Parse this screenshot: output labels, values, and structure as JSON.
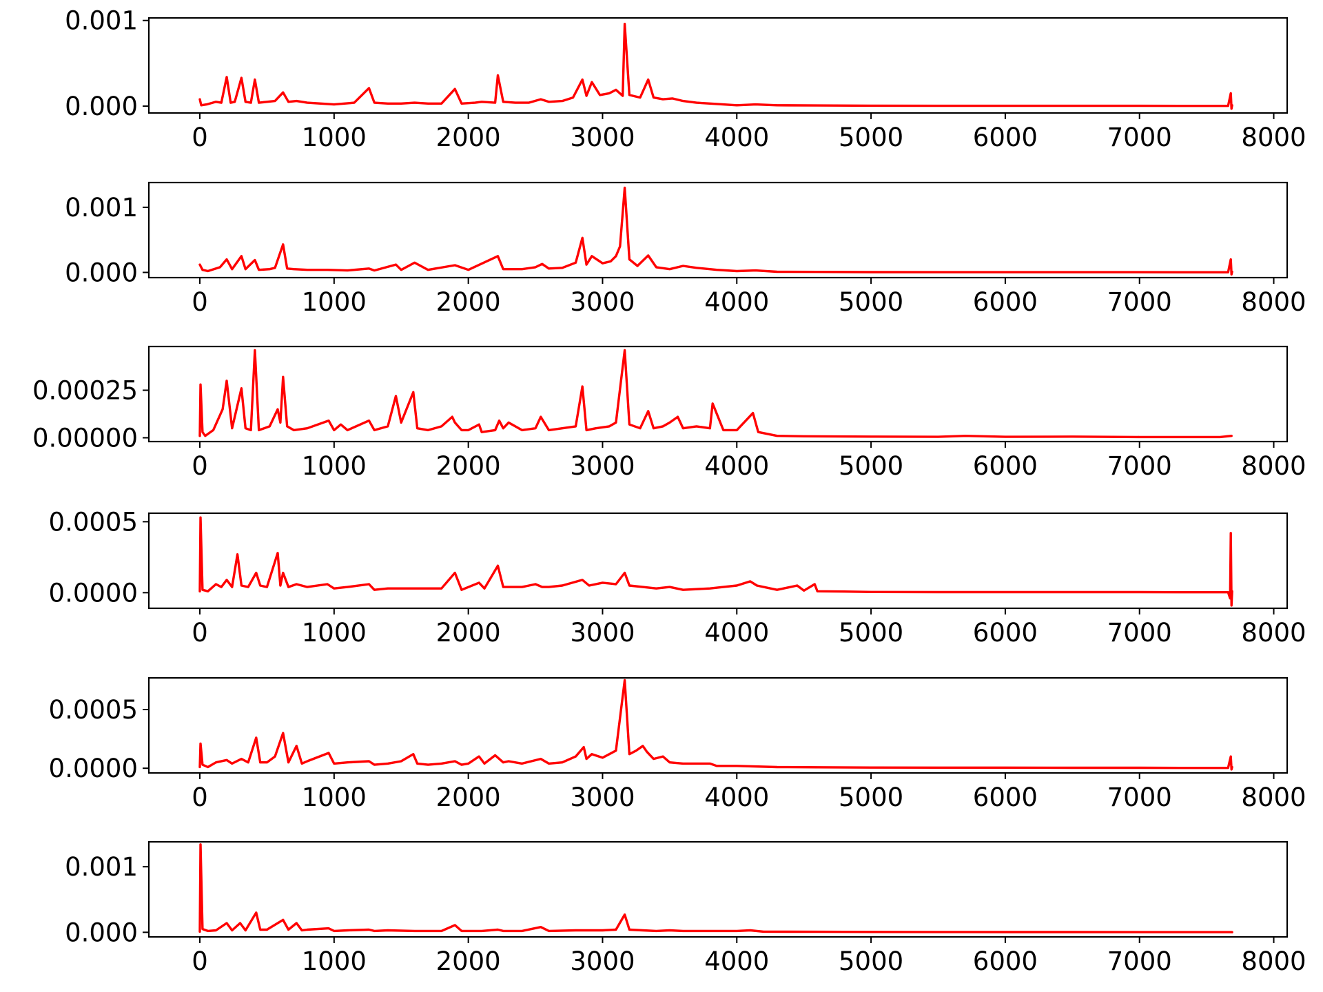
{
  "line_color": "#ff0000",
  "chart_data": [
    {
      "type": "line",
      "xlim": [
        -380,
        8100
      ],
      "ylim": [
        -8e-05,
        0.00103
      ],
      "xticks": [
        0,
        1000,
        2000,
        3000,
        4000,
        5000,
        6000,
        7000,
        8000
      ],
      "yticks": [
        0.0,
        0.001
      ],
      "ytick_labels": [
        "0.000",
        "0.001"
      ],
      "xtick_labels": [
        "0",
        "1000",
        "2000",
        "3000",
        "4000",
        "5000",
        "6000",
        "7000",
        "8000"
      ],
      "grid": false,
      "series": [
        {
          "x": [
            0,
            10,
            50,
            120,
            160,
            200,
            230,
            260,
            310,
            340,
            380,
            410,
            440,
            500,
            560,
            620,
            660,
            720,
            800,
            900,
            1000,
            1150,
            1260,
            1300,
            1400,
            1500,
            1600,
            1700,
            1800,
            1900,
            1950,
            2050,
            2100,
            2200,
            2220,
            2260,
            2350,
            2450,
            2540,
            2600,
            2700,
            2780,
            2850,
            2880,
            2920,
            2980,
            3050,
            3100,
            3150,
            3165,
            3200,
            3280,
            3340,
            3380,
            3450,
            3520,
            3600,
            3700,
            3800,
            3900,
            4000,
            4140,
            4300,
            4600,
            5000,
            5500,
            6000,
            6500,
            7000,
            7300,
            7600,
            7660,
            7680,
            7685,
            7690
          ],
          "y": [
            8e-05,
            1e-05,
            2e-05,
            5e-05,
            4e-05,
            0.00034,
            4e-05,
            5e-05,
            0.00033,
            5e-05,
            4e-05,
            0.00031,
            4e-05,
            5e-05,
            6e-05,
            0.00016,
            5e-05,
            6e-05,
            4e-05,
            3e-05,
            2e-05,
            4e-05,
            0.00021,
            4e-05,
            3e-05,
            3e-05,
            4e-05,
            3e-05,
            3e-05,
            0.0002,
            3e-05,
            4e-05,
            5e-05,
            4e-05,
            0.00036,
            5e-05,
            4e-05,
            4e-05,
            8e-05,
            5e-05,
            6e-05,
            0.0001,
            0.00031,
            0.00012,
            0.00028,
            0.00013,
            0.00015,
            0.00019,
            0.00012,
            0.00096,
            0.00013,
            0.0001,
            0.00031,
            0.0001,
            8e-05,
            9e-05,
            6e-05,
            4e-05,
            3e-05,
            2e-05,
            1e-05,
            2e-05,
            1e-05,
            8e-06,
            5e-06,
            4e-06,
            4e-06,
            4e-06,
            4e-06,
            3e-06,
            3e-06,
            3e-06,
            0.00015,
            -3e-05,
            1e-05
          ]
        }
      ]
    },
    {
      "type": "line",
      "xlim": [
        -380,
        8100
      ],
      "ylim": [
        -8e-05,
        0.00138
      ],
      "xticks": [
        0,
        1000,
        2000,
        3000,
        4000,
        5000,
        6000,
        7000,
        8000
      ],
      "yticks": [
        0.0,
        0.001
      ],
      "ytick_labels": [
        "0.000",
        "0.001"
      ],
      "xtick_labels": [
        "0",
        "1000",
        "2000",
        "3000",
        "4000",
        "5000",
        "6000",
        "7000",
        "8000"
      ],
      "grid": false,
      "series": [
        {
          "x": [
            0,
            20,
            60,
            150,
            200,
            240,
            310,
            340,
            410,
            440,
            520,
            560,
            620,
            650,
            700,
            800,
            950,
            1100,
            1260,
            1300,
            1460,
            1500,
            1600,
            1700,
            1900,
            2000,
            2220,
            2260,
            2400,
            2500,
            2550,
            2600,
            2700,
            2800,
            2850,
            2880,
            2920,
            3000,
            3060,
            3100,
            3130,
            3165,
            3200,
            3260,
            3340,
            3400,
            3500,
            3600,
            3700,
            3800,
            3850,
            4000,
            4140,
            4300,
            4600,
            5000,
            5500,
            6000,
            6500,
            7000,
            7300,
            7600,
            7660,
            7680,
            7685,
            7690
          ],
          "y": [
            0.00012,
            4e-05,
            2e-05,
            8e-05,
            0.0002,
            5e-05,
            0.00025,
            5e-05,
            0.00019,
            4e-05,
            5e-05,
            7e-05,
            0.00043,
            6e-05,
            5e-05,
            4e-05,
            4e-05,
            3e-05,
            6e-05,
            3e-05,
            0.00012,
            4e-05,
            0.00015,
            4e-05,
            0.00011,
            4e-05,
            0.00025,
            5e-05,
            5e-05,
            8e-05,
            0.00013,
            6e-05,
            7e-05,
            0.00015,
            0.00053,
            0.00012,
            0.00025,
            0.00014,
            0.00017,
            0.00025,
            0.0004,
            0.0013,
            0.0002,
            0.0001,
            0.00026,
            8e-05,
            5e-05,
            0.0001,
            7e-05,
            5e-05,
            4e-05,
            2e-05,
            3e-05,
            1e-05,
            8e-06,
            5e-06,
            4e-06,
            4e-06,
            4e-06,
            4e-06,
            3e-06,
            3e-06,
            3e-06,
            0.0002,
            -3e-05,
            1e-05
          ]
        }
      ]
    },
    {
      "type": "line",
      "xlim": [
        -380,
        8100
      ],
      "ylim": [
        -2e-05,
        0.00048
      ],
      "xticks": [
        0,
        1000,
        2000,
        3000,
        4000,
        5000,
        6000,
        7000,
        8000
      ],
      "yticks": [
        0.0,
        0.00025
      ],
      "ytick_labels": [
        "0.00000",
        "0.00025"
      ],
      "xtick_labels": [
        "0",
        "1000",
        "2000",
        "3000",
        "4000",
        "5000",
        "6000",
        "7000",
        "8000"
      ],
      "grid": false,
      "series": [
        {
          "x": [
            0,
            5,
            20,
            40,
            100,
            170,
            200,
            240,
            310,
            340,
            380,
            410,
            440,
            520,
            580,
            600,
            620,
            650,
            700,
            800,
            960,
            1000,
            1050,
            1100,
            1260,
            1300,
            1400,
            1460,
            1500,
            1590,
            1620,
            1700,
            1800,
            1880,
            1900,
            1950,
            2000,
            2080,
            2100,
            2200,
            2230,
            2260,
            2300,
            2400,
            2500,
            2540,
            2600,
            2700,
            2800,
            2850,
            2880,
            2950,
            3050,
            3100,
            3165,
            3200,
            3280,
            3340,
            3380,
            3450,
            3500,
            3560,
            3600,
            3700,
            3800,
            3820,
            3900,
            4000,
            4120,
            4160,
            4300,
            4500,
            5000,
            5500,
            5700,
            6000,
            6500,
            7000,
            7300,
            7600,
            7685
          ],
          "y": [
            1e-05,
            0.00028,
            3e-05,
            1e-05,
            4e-05,
            0.00015,
            0.0003,
            5e-05,
            0.00026,
            5e-05,
            4e-05,
            0.00046,
            4e-05,
            6e-05,
            0.00015,
            8e-05,
            0.00032,
            6e-05,
            4e-05,
            5e-05,
            9e-05,
            4e-05,
            7e-05,
            4e-05,
            9e-05,
            4e-05,
            6e-05,
            0.00022,
            8e-05,
            0.00024,
            5e-05,
            4e-05,
            6e-05,
            0.00011,
            8e-05,
            4e-05,
            4e-05,
            7e-05,
            3e-05,
            4e-05,
            9e-05,
            5e-05,
            8e-05,
            4e-05,
            5e-05,
            0.00011,
            4e-05,
            5e-05,
            6e-05,
            0.00027,
            4e-05,
            5e-05,
            6e-05,
            8e-05,
            0.00046,
            7e-05,
            5e-05,
            0.00014,
            5e-05,
            6e-05,
            8e-05,
            0.00011,
            5e-05,
            6e-05,
            5e-05,
            0.00018,
            4e-05,
            4e-05,
            0.00013,
            3e-05,
            1e-05,
            8e-06,
            6e-06,
            5e-06,
            1e-05,
            5e-06,
            6e-06,
            4e-06,
            4e-06,
            4e-06,
            1e-05
          ]
        }
      ]
    },
    {
      "type": "line",
      "xlim": [
        -380,
        8100
      ],
      "ylim": [
        -0.00011,
        0.00056
      ],
      "xticks": [
        0,
        1000,
        2000,
        3000,
        4000,
        5000,
        6000,
        7000,
        8000
      ],
      "yticks": [
        0.0,
        0.0005
      ],
      "ytick_labels": [
        "0.0000",
        "0.0005"
      ],
      "xtick_labels": [
        "0",
        "1000",
        "2000",
        "3000",
        "4000",
        "5000",
        "6000",
        "7000",
        "8000"
      ],
      "grid": false,
      "series": [
        {
          "x": [
            0,
            5,
            20,
            60,
            120,
            160,
            200,
            240,
            280,
            310,
            360,
            420,
            450,
            500,
            580,
            600,
            620,
            660,
            720,
            800,
            950,
            1000,
            1100,
            1260,
            1300,
            1400,
            1600,
            1800,
            1900,
            1950,
            2080,
            2120,
            2220,
            2260,
            2400,
            2500,
            2550,
            2600,
            2700,
            2850,
            2900,
            3000,
            3100,
            3165,
            3200,
            3300,
            3400,
            3500,
            3600,
            3800,
            3900,
            4000,
            4100,
            4150,
            4300,
            4450,
            4500,
            4580,
            4600,
            4800,
            5000,
            5500,
            6000,
            6500,
            7000,
            7300,
            7600,
            7660,
            7675,
            7680,
            7685,
            7690
          ],
          "y": [
            1e-05,
            0.00053,
            2e-05,
            1e-05,
            6e-05,
            4e-05,
            9e-05,
            4e-05,
            0.00027,
            5e-05,
            4e-05,
            0.00014,
            5e-05,
            4e-05,
            0.00028,
            5e-05,
            0.00014,
            4e-05,
            6e-05,
            4e-05,
            6e-05,
            3e-05,
            4e-05,
            6e-05,
            2e-05,
            3e-05,
            3e-05,
            3e-05,
            0.00014,
            2e-05,
            7e-05,
            3e-05,
            0.00019,
            4e-05,
            4e-05,
            6e-05,
            4e-05,
            4e-05,
            5e-05,
            9e-05,
            5e-05,
            7e-05,
            6e-05,
            0.00014,
            5e-05,
            4e-05,
            3e-05,
            4e-05,
            2e-05,
            3e-05,
            4e-05,
            5e-05,
            8e-05,
            5e-05,
            2e-05,
            5e-05,
            1.5e-05,
            6e-05,
            1e-05,
            8e-06,
            5e-06,
            4e-06,
            4e-06,
            4e-06,
            4e-06,
            3e-06,
            3e-06,
            3e-06,
            -4e-05,
            0.00042,
            -9e-05,
            1e-05
          ]
        }
      ]
    },
    {
      "type": "line",
      "xlim": [
        -380,
        8100
      ],
      "ylim": [
        -4e-05,
        0.00077
      ],
      "xticks": [
        0,
        1000,
        2000,
        3000,
        4000,
        5000,
        6000,
        7000,
        8000
      ],
      "yticks": [
        0.0,
        0.0005
      ],
      "ytick_labels": [
        "0.0000",
        "0.0005"
      ],
      "xtick_labels": [
        "0",
        "1000",
        "2000",
        "3000",
        "4000",
        "5000",
        "6000",
        "7000",
        "8000"
      ],
      "grid": false,
      "series": [
        {
          "x": [
            0,
            5,
            20,
            60,
            120,
            200,
            240,
            310,
            360,
            420,
            450,
            500,
            560,
            620,
            660,
            720,
            760,
            800,
            960,
            1000,
            1100,
            1260,
            1300,
            1400,
            1500,
            1590,
            1620,
            1700,
            1800,
            1900,
            1950,
            2000,
            2080,
            2120,
            2200,
            2260,
            2300,
            2400,
            2540,
            2600,
            2700,
            2800,
            2860,
            2880,
            2920,
            3000,
            3100,
            3165,
            3200,
            3250,
            3300,
            3330,
            3380,
            3450,
            3500,
            3600,
            3800,
            3850,
            4000,
            4300,
            4600,
            5000,
            5500,
            6000,
            6500,
            7000,
            7300,
            7600,
            7660,
            7680,
            7685,
            7690
          ],
          "y": [
            1e-05,
            0.00021,
            3e-05,
            1e-05,
            5e-05,
            7e-05,
            4e-05,
            8e-05,
            5e-05,
            0.00026,
            5e-05,
            5e-05,
            0.0001,
            0.0003,
            5e-05,
            0.00019,
            4e-05,
            6e-05,
            0.00013,
            4e-05,
            5e-05,
            6e-05,
            3e-05,
            4e-05,
            6e-05,
            0.00012,
            4e-05,
            3e-05,
            4e-05,
            6e-05,
            3e-05,
            4e-05,
            0.0001,
            4e-05,
            0.00011,
            5e-05,
            6e-05,
            4e-05,
            8e-05,
            4e-05,
            5e-05,
            0.0001,
            0.00018,
            8e-05,
            0.00012,
            9e-05,
            0.00015,
            0.00075,
            0.00012,
            0.00015,
            0.00019,
            0.00014,
            8e-05,
            0.0001,
            5e-05,
            4e-05,
            4e-05,
            2e-05,
            2e-05,
            1e-05,
            8e-06,
            6e-06,
            5e-06,
            5e-06,
            4e-06,
            4e-06,
            3e-06,
            3e-06,
            3e-06,
            0.0001,
            -1e-05,
            1e-05
          ]
        }
      ]
    },
    {
      "type": "line",
      "xlim": [
        -380,
        8100
      ],
      "ylim": [
        -7e-05,
        0.00138
      ],
      "xticks": [
        0,
        1000,
        2000,
        3000,
        4000,
        5000,
        6000,
        7000,
        8000
      ],
      "yticks": [
        0.0,
        0.001
      ],
      "ytick_labels": [
        "0.000",
        "0.001"
      ],
      "xtick_labels": [
        "0",
        "1000",
        "2000",
        "3000",
        "4000",
        "5000",
        "6000",
        "7000",
        "8000"
      ],
      "grid": false,
      "series": [
        {
          "x": [
            0,
            5,
            20,
            60,
            120,
            200,
            240,
            300,
            340,
            420,
            450,
            500,
            620,
            660,
            720,
            760,
            800,
            960,
            1000,
            1100,
            1260,
            1300,
            1400,
            1600,
            1800,
            1900,
            1950,
            2100,
            2220,
            2260,
            2400,
            2540,
            2600,
            2800,
            3000,
            3100,
            3165,
            3200,
            3300,
            3400,
            3500,
            3600,
            3800,
            4000,
            4100,
            4200,
            4600,
            5000,
            5500,
            6000,
            6500,
            7000,
            7300,
            7600,
            7685,
            7690
          ],
          "y": [
            1e-05,
            0.00134,
            5e-05,
            2e-05,
            3e-05,
            0.00014,
            3e-05,
            0.00014,
            3e-05,
            0.0003,
            4e-05,
            4e-05,
            0.00019,
            4e-05,
            0.00014,
            3e-05,
            4e-05,
            6e-05,
            2e-05,
            3e-05,
            4e-05,
            2e-05,
            3e-05,
            2e-05,
            2e-05,
            0.00011,
            2e-05,
            2e-05,
            4e-05,
            2e-05,
            2e-05,
            8e-05,
            2e-05,
            3e-05,
            3e-05,
            4e-05,
            0.00027,
            4e-05,
            3e-05,
            2e-05,
            3e-05,
            2e-05,
            2e-05,
            2e-05,
            3e-05,
            1e-05,
            8e-06,
            6e-06,
            5e-06,
            4e-06,
            4e-06,
            3e-06,
            3e-06,
            2e-06,
            2e-06,
            1e-06
          ]
        }
      ]
    }
  ]
}
